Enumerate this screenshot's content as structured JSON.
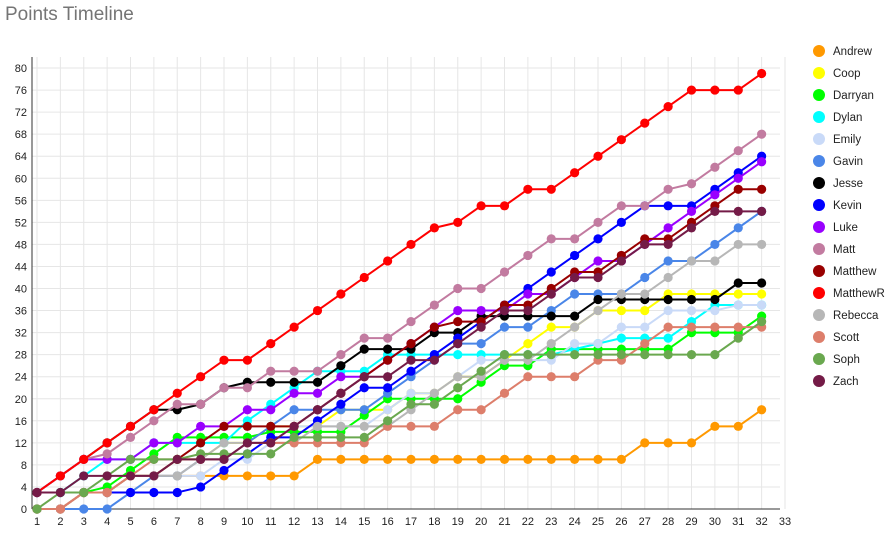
{
  "chart_data": {
    "type": "line",
    "title": "Points Timeline",
    "xlabel": "",
    "ylabel": "",
    "xlim": [
      1,
      33
    ],
    "ylim": [
      0,
      82
    ],
    "x_ticks": [
      1,
      2,
      3,
      4,
      5,
      6,
      7,
      8,
      9,
      10,
      11,
      12,
      13,
      14,
      15,
      16,
      17,
      18,
      19,
      20,
      21,
      22,
      23,
      24,
      25,
      26,
      27,
      28,
      29,
      30,
      31,
      32,
      33
    ],
    "y_ticks": [
      0,
      4,
      8,
      12,
      16,
      20,
      24,
      28,
      32,
      36,
      40,
      44,
      48,
      52,
      56,
      60,
      64,
      68,
      72,
      76,
      80
    ],
    "grid": true,
    "legend_position": "right",
    "x": [
      1,
      2,
      3,
      4,
      5,
      6,
      7,
      8,
      9,
      10,
      11,
      12,
      13,
      14,
      15,
      16,
      17,
      18,
      19,
      20,
      21,
      22,
      23,
      24,
      25,
      26,
      27,
      28,
      29,
      30,
      31,
      32
    ],
    "series": [
      {
        "name": "Andrew",
        "color": "#ff9900",
        "values": [
          0,
          0,
          3,
          3,
          6,
          6,
          6,
          6,
          6,
          6,
          6,
          6,
          9,
          9,
          9,
          9,
          9,
          9,
          9,
          9,
          9,
          9,
          9,
          9,
          9,
          9,
          12,
          12,
          12,
          15,
          15,
          18
        ]
      },
      {
        "name": "Coop",
        "color": "#ffff00",
        "values": [
          0,
          0,
          3,
          3,
          6,
          6,
          9,
          9,
          12,
          12,
          15,
          15,
          15,
          18,
          18,
          18,
          21,
          21,
          24,
          24,
          27,
          30,
          33,
          33,
          36,
          36,
          36,
          39,
          39,
          39,
          39,
          39
        ]
      },
      {
        "name": "Darryan",
        "color": "#00ff00",
        "values": [
          3,
          3,
          3,
          4,
          7,
          10,
          13,
          13,
          13,
          13,
          14,
          14,
          14,
          14,
          17,
          20,
          20,
          20,
          20,
          23,
          26,
          26,
          29,
          29,
          29,
          29,
          29,
          29,
          32,
          32,
          32,
          35
        ]
      },
      {
        "name": "Dylan",
        "color": "#00ffff",
        "values": [
          3,
          3,
          6,
          9,
          9,
          12,
          12,
          12,
          12,
          16,
          19,
          22,
          25,
          25,
          25,
          28,
          28,
          28,
          28,
          28,
          28,
          28,
          28,
          29,
          30,
          31,
          31,
          31,
          34,
          37,
          37,
          37
        ]
      },
      {
        "name": "Emily",
        "color": "#c9daf8",
        "values": [
          0,
          0,
          3,
          3,
          6,
          6,
          6,
          6,
          9,
          9,
          12,
          15,
          15,
          15,
          15,
          18,
          21,
          21,
          24,
          27,
          27,
          27,
          27,
          30,
          30,
          33,
          33,
          36,
          36,
          36,
          37,
          37
        ]
      },
      {
        "name": "Gavin",
        "color": "#4a86e8",
        "values": [
          0,
          0,
          0,
          0,
          3,
          6,
          6,
          9,
          9,
          12,
          15,
          18,
          18,
          18,
          18,
          21,
          24,
          27,
          30,
          30,
          33,
          33,
          36,
          39,
          39,
          39,
          42,
          45,
          45,
          48,
          51,
          54
        ]
      },
      {
        "name": "Jesse",
        "color": "#000000",
        "values": [
          3,
          6,
          9,
          12,
          15,
          18,
          18,
          19,
          22,
          23,
          23,
          23,
          23,
          26,
          29,
          29,
          29,
          32,
          32,
          35,
          35,
          35,
          35,
          35,
          38,
          38,
          38,
          38,
          38,
          38,
          41,
          41
        ]
      },
      {
        "name": "Kevin",
        "color": "#0000ff",
        "values": [
          3,
          3,
          3,
          3,
          3,
          3,
          3,
          4,
          7,
          10,
          13,
          13,
          16,
          19,
          22,
          22,
          25,
          28,
          31,
          34,
          37,
          40,
          43,
          46,
          49,
          52,
          55,
          55,
          55,
          58,
          61,
          64
        ]
      },
      {
        "name": "Luke",
        "color": "#9900ff",
        "values": [
          3,
          6,
          9,
          9,
          9,
          12,
          12,
          15,
          15,
          18,
          18,
          21,
          21,
          24,
          24,
          27,
          30,
          33,
          36,
          36,
          36,
          39,
          39,
          42,
          45,
          45,
          48,
          51,
          54,
          57,
          60,
          63
        ]
      },
      {
        "name": "Matt",
        "color": "#c27ba0",
        "values": [
          3,
          6,
          9,
          10,
          13,
          16,
          19,
          19,
          22,
          22,
          25,
          25,
          25,
          28,
          31,
          31,
          34,
          37,
          40,
          40,
          43,
          46,
          49,
          49,
          52,
          55,
          55,
          58,
          59,
          62,
          65,
          68
        ]
      },
      {
        "name": "Matthew",
        "color": "#990000",
        "values": [
          0,
          0,
          3,
          3,
          6,
          6,
          9,
          12,
          15,
          15,
          15,
          15,
          18,
          21,
          24,
          27,
          30,
          33,
          34,
          34,
          37,
          37,
          40,
          43,
          43,
          46,
          49,
          49,
          52,
          55,
          58,
          58
        ]
      },
      {
        "name": "MatthewR",
        "color": "#ff0000",
        "values": [
          3,
          6,
          9,
          12,
          15,
          18,
          21,
          24,
          27,
          27,
          30,
          33,
          36,
          39,
          42,
          45,
          48,
          51,
          52,
          55,
          55,
          58,
          58,
          61,
          64,
          67,
          70,
          73,
          76,
          76,
          76,
          79
        ]
      },
      {
        "name": "Rebecca",
        "color": "#b7b7b7",
        "values": [
          0,
          0,
          3,
          3,
          6,
          6,
          6,
          9,
          12,
          12,
          12,
          12,
          15,
          15,
          15,
          15,
          18,
          21,
          24,
          24,
          27,
          27,
          30,
          33,
          36,
          39,
          39,
          42,
          45,
          45,
          48,
          48
        ]
      },
      {
        "name": "Scott",
        "color": "#dd7e6b",
        "values": [
          0,
          0,
          3,
          3,
          6,
          9,
          9,
          9,
          9,
          12,
          12,
          12,
          12,
          12,
          12,
          15,
          15,
          15,
          18,
          18,
          21,
          24,
          24,
          24,
          27,
          27,
          30,
          33,
          33,
          33,
          33,
          33
        ]
      },
      {
        "name": "Soph",
        "color": "#6aa84f",
        "values": [
          0,
          3,
          3,
          6,
          9,
          9,
          9,
          10,
          10,
          10,
          10,
          13,
          13,
          13,
          13,
          16,
          19,
          19,
          22,
          25,
          28,
          28,
          28,
          28,
          28,
          28,
          28,
          28,
          28,
          28,
          31,
          34
        ]
      },
      {
        "name": "Zach",
        "color": "#741b47",
        "values": [
          3,
          3,
          6,
          6,
          6,
          6,
          9,
          9,
          9,
          12,
          12,
          15,
          18,
          21,
          24,
          24,
          27,
          27,
          30,
          33,
          36,
          36,
          39,
          42,
          42,
          45,
          48,
          48,
          51,
          54,
          54,
          54
        ]
      }
    ]
  }
}
